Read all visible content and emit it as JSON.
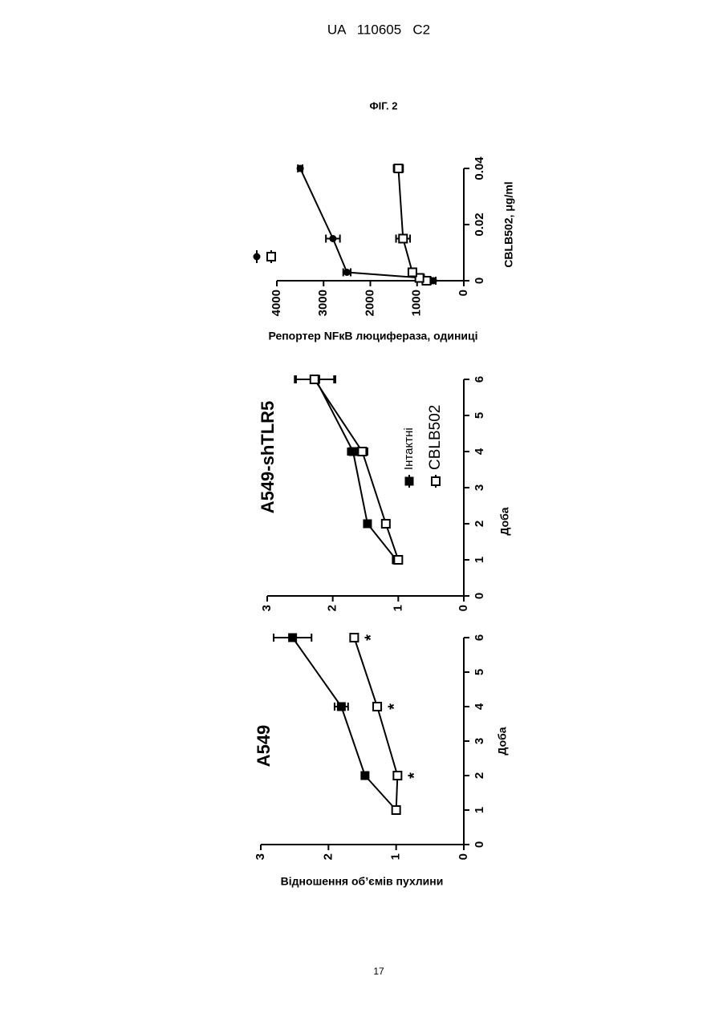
{
  "header": "UA   110605   C2",
  "figure_label": "ФІГ. 2",
  "page_number": "17",
  "chart_data": [
    {
      "type": "line",
      "title": "A549",
      "x_label": "Доба",
      "y_label": "Відношення об’ємів пухлини",
      "x": [
        1,
        2,
        4,
        6
      ],
      "xlim": [
        0,
        6
      ],
      "xticks": [
        0,
        1,
        2,
        3,
        4,
        5,
        6
      ],
      "ylim": [
        0,
        3
      ],
      "yticks": [
        0,
        1,
        2,
        3
      ],
      "series": [
        {
          "color": "#000000",
          "marker": "square-filled",
          "values": [
            1.0,
            1.46,
            1.81,
            2.53
          ],
          "errors": [
            0.03,
            0.05,
            0.1,
            0.28
          ]
        },
        {
          "color": "#000000",
          "marker": "square-open",
          "values": [
            1.0,
            0.98,
            1.28,
            1.62
          ],
          "errors": [
            0.03,
            0.05,
            0.05,
            0.05
          ]
        }
      ],
      "annotations": [
        {
          "text": "*",
          "x": 2
        },
        {
          "text": "*",
          "x": 4
        },
        {
          "text": "*",
          "x": 6
        }
      ]
    },
    {
      "type": "line",
      "title": "A549-shTLR5",
      "x_label": "Доба",
      "x": [
        1,
        2,
        4,
        6
      ],
      "xlim": [
        0,
        6
      ],
      "xticks": [
        0,
        1,
        2,
        3,
        4,
        5,
        6
      ],
      "ylim": [
        0,
        3
      ],
      "yticks": [
        0,
        1,
        2,
        3
      ],
      "legend": "lower right",
      "series": [
        {
          "name": "Інтактні",
          "color": "#000000",
          "marker": "square-filled",
          "values": [
            1.03,
            1.47,
            1.69,
            2.26
          ],
          "errors": [
            0.03,
            0.05,
            0.08,
            0.3
          ]
        },
        {
          "name": "CBLB502",
          "color": "#000000",
          "marker": "square-open",
          "values": [
            1.0,
            1.19,
            1.55,
            2.28
          ],
          "errors": [
            0.03,
            0.05,
            0.08,
            0.3
          ]
        }
      ]
    },
    {
      "type": "line",
      "x_label": "CBLB502, μg/ml",
      "y_label": "Репортер NFкB люцифераза, одиниці",
      "x": [
        0,
        0.001,
        0.003,
        0.015,
        0.04
      ],
      "xlim": [
        0,
        0.04
      ],
      "xticks": [
        0,
        0.02,
        0.04
      ],
      "ylim": [
        0,
        4000
      ],
      "yticks": [
        0,
        1000,
        2000,
        3000,
        4000
      ],
      "legend": "upper left",
      "series": [
        {
          "color": "#000000",
          "marker": "circle-filled",
          "values": [
            650,
            900,
            2500,
            2800,
            3500
          ],
          "errors": [
            50,
            50,
            80,
            150,
            50
          ]
        },
        {
          "color": "#000000",
          "marker": "square-open",
          "values": [
            800,
            950,
            1100,
            1300,
            1400
          ],
          "errors": [
            50,
            60,
            80,
            150,
            100
          ]
        }
      ]
    }
  ]
}
